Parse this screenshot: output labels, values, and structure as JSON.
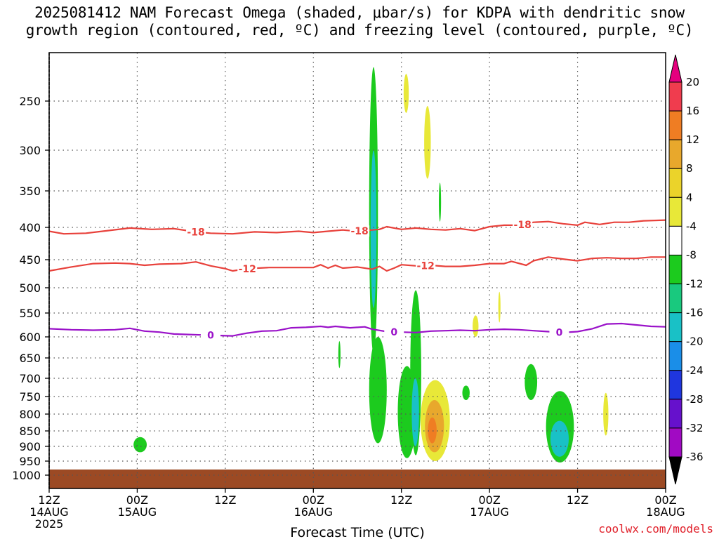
{
  "title_line1": "2025081412 NAM Forecast Omega (shaded, μbar/s) for KDPA with dendritic snow",
  "title_line2": "growth region (contoured, red, ºC) and freezing level (contoured, purple, ºC)",
  "credit": "coolwx.com/models",
  "colors": {
    "ground": "#9c4a24",
    "temp_contour": "#e8413b",
    "freezing_contour": "#9a12c9"
  },
  "chart_data": {
    "type": "heatmap",
    "xlabel": "Forecast Time (UTC)",
    "ylabel": "",
    "x_unit": "hours since 2025-08-14 12Z",
    "xlim": [
      0,
      84
    ],
    "x_ticks": [
      {
        "x": 0,
        "line1": "12Z",
        "line2": "14AUG",
        "line3": "2025"
      },
      {
        "x": 12,
        "line1": "00Z",
        "line2": "15AUG",
        "line3": ""
      },
      {
        "x": 24,
        "line1": "12Z",
        "line2": "",
        "line3": ""
      },
      {
        "x": 36,
        "line1": "00Z",
        "line2": "16AUG",
        "line3": ""
      },
      {
        "x": 48,
        "line1": "12Z",
        "line2": "",
        "line3": ""
      },
      {
        "x": 60,
        "line1": "00Z",
        "line2": "17AUG",
        "line3": ""
      },
      {
        "x": 72,
        "line1": "12Z",
        "line2": "",
        "line3": ""
      },
      {
        "x": 84,
        "line1": "00Z",
        "line2": "18AUG",
        "line3": ""
      }
    ],
    "y_unit": "hPa",
    "ylim": [
      200,
      1030
    ],
    "y_ticks": [
      250,
      300,
      350,
      400,
      450,
      500,
      550,
      600,
      650,
      700,
      750,
      800,
      850,
      900,
      950,
      1000
    ],
    "ground_top_pressure": 980,
    "colorbar": {
      "labels": [
        "20",
        "16",
        "12",
        "8",
        "4",
        "-4",
        "-8",
        "-12",
        "-16",
        "-20",
        "-24",
        "-28",
        "-32",
        "-36"
      ],
      "colors": [
        "#f03c4e",
        "#ef7d23",
        "#e8a82c",
        "#ebd32a",
        "#e8e838",
        "#ffffff",
        "#1ccb1e",
        "#19c97e",
        "#19c1c6",
        "#1a8ee8",
        "#1f36df",
        "#6611cc",
        "#a10ac3",
        "#a8a8a8"
      ],
      "top_color": "#e5007e",
      "bottom_color": "#000000"
    },
    "contours": [
      {
        "label": "-18",
        "color": "#e8413b",
        "label_x": 20,
        "label_x2": 42.3,
        "label_x3": 64.5,
        "points": [
          [
            0,
            406
          ],
          [
            2,
            410
          ],
          [
            5,
            409
          ],
          [
            8,
            405
          ],
          [
            11,
            401
          ],
          [
            14,
            403
          ],
          [
            17,
            402
          ],
          [
            20,
            407
          ],
          [
            22,
            409
          ],
          [
            25,
            410
          ],
          [
            28,
            407
          ],
          [
            31,
            408
          ],
          [
            34,
            406
          ],
          [
            36,
            408
          ],
          [
            38,
            406
          ],
          [
            40,
            404
          ],
          [
            42,
            406
          ],
          [
            44,
            404
          ],
          [
            45,
            403
          ],
          [
            46,
            399
          ],
          [
            48,
            403
          ],
          [
            50,
            401
          ],
          [
            52,
            403
          ],
          [
            54,
            404
          ],
          [
            56,
            402
          ],
          [
            58,
            405
          ],
          [
            60,
            399
          ],
          [
            62,
            397
          ],
          [
            64,
            397
          ],
          [
            66,
            393
          ],
          [
            68,
            392
          ],
          [
            70,
            395
          ],
          [
            72,
            397
          ],
          [
            73,
            393
          ],
          [
            75,
            396
          ],
          [
            77,
            393
          ],
          [
            79,
            393
          ],
          [
            81,
            391
          ],
          [
            84,
            390
          ]
        ]
      },
      {
        "label": "-12",
        "color": "#e8413b",
        "label_x": 27,
        "label_x2": 51.3,
        "points": [
          [
            0,
            470
          ],
          [
            3,
            463
          ],
          [
            6,
            457
          ],
          [
            9,
            456
          ],
          [
            11,
            457
          ],
          [
            13,
            460
          ],
          [
            15,
            458
          ],
          [
            18,
            457
          ],
          [
            20,
            454
          ],
          [
            22,
            461
          ],
          [
            24,
            466
          ],
          [
            25,
            470
          ],
          [
            27,
            466
          ],
          [
            30,
            464
          ],
          [
            33,
            464
          ],
          [
            36,
            464
          ],
          [
            37,
            459
          ],
          [
            38,
            465
          ],
          [
            39,
            460
          ],
          [
            40,
            465
          ],
          [
            42,
            463
          ],
          [
            44,
            467
          ],
          [
            45,
            462
          ],
          [
            46,
            470
          ],
          [
            47,
            465
          ],
          [
            48,
            459
          ],
          [
            50,
            461
          ],
          [
            52,
            460
          ],
          [
            54,
            462
          ],
          [
            56,
            462
          ],
          [
            58,
            460
          ],
          [
            60,
            457
          ],
          [
            62,
            457
          ],
          [
            63,
            453
          ],
          [
            65,
            460
          ],
          [
            66,
            452
          ],
          [
            68,
            446
          ],
          [
            70,
            449
          ],
          [
            72,
            452
          ],
          [
            74,
            448
          ],
          [
            76,
            447
          ],
          [
            78,
            448
          ],
          [
            80,
            448
          ],
          [
            82,
            446
          ],
          [
            84,
            446
          ]
        ]
      },
      {
        "label": "0",
        "color": "#9a12c9",
        "label_x": 22,
        "label_x2": 47,
        "label_x3": 69.5,
        "points": [
          [
            0,
            583
          ],
          [
            3,
            585
          ],
          [
            6,
            586
          ],
          [
            9,
            585
          ],
          [
            11,
            582
          ],
          [
            13,
            588
          ],
          [
            15,
            590
          ],
          [
            17,
            594
          ],
          [
            19,
            595
          ],
          [
            21,
            596
          ],
          [
            23,
            597
          ],
          [
            25,
            598
          ],
          [
            27,
            592
          ],
          [
            29,
            588
          ],
          [
            31,
            587
          ],
          [
            33,
            581
          ],
          [
            35,
            580
          ],
          [
            37,
            578
          ],
          [
            38,
            580
          ],
          [
            39,
            578
          ],
          [
            41,
            581
          ],
          [
            43,
            579
          ],
          [
            44,
            584
          ],
          [
            46,
            589
          ],
          [
            48,
            590
          ],
          [
            50,
            591
          ],
          [
            52,
            588
          ],
          [
            54,
            587
          ],
          [
            56,
            586
          ],
          [
            58,
            587
          ],
          [
            60,
            585
          ],
          [
            62,
            584
          ],
          [
            64,
            585
          ],
          [
            66,
            587
          ],
          [
            68,
            589
          ],
          [
            70,
            591
          ],
          [
            72,
            589
          ],
          [
            74,
            583
          ],
          [
            76,
            573
          ],
          [
            78,
            572
          ],
          [
            80,
            575
          ],
          [
            82,
            578
          ],
          [
            84,
            579
          ]
        ]
      }
    ],
    "omega_regions": [
      {
        "level": "-8 to -12",
        "color": "#1ccb1e",
        "x_range": [
          43.6,
          44.8
        ],
        "p_range": [
          215,
          640
        ]
      },
      {
        "level": "-12 to -16",
        "color": "#19c1c6",
        "x_range": [
          43.8,
          44.6
        ],
        "p_range": [
          300,
          540
        ]
      },
      {
        "level": "-8 to -12",
        "color": "#1ccb1e",
        "x_range": [
          43.6,
          46.0
        ],
        "p_range": [
          600,
          890
        ]
      },
      {
        "level": "-8 to -12",
        "color": "#1ccb1e",
        "x_range": [
          47.5,
          50.0
        ],
        "p_range": [
          670,
          940
        ]
      },
      {
        "level": "-8 to -12",
        "color": "#1ccb1e",
        "x_range": [
          49.2,
          50.7
        ],
        "p_range": [
          505,
          930
        ]
      },
      {
        "level": "-12 to -16",
        "color": "#19c1c6",
        "x_range": [
          49.4,
          50.4
        ],
        "p_range": [
          700,
          900
        ]
      },
      {
        "level": "4 to 8",
        "color": "#e8e838",
        "x_range": [
          50.6,
          54.6
        ],
        "p_range": [
          705,
          950
        ]
      },
      {
        "level": "8 to 12",
        "color": "#e8a82c",
        "x_range": [
          51.2,
          53.8
        ],
        "p_range": [
          760,
          920
        ]
      },
      {
        "level": "12 to 16",
        "color": "#ef7d23",
        "x_range": [
          51.6,
          52.8
        ],
        "p_range": [
          810,
          890
        ]
      },
      {
        "level": "4 to 8",
        "color": "#e8e838",
        "x_range": [
          48.3,
          49.0
        ],
        "p_range": [
          222,
          262
        ]
      },
      {
        "level": "4 to 8",
        "color": "#e8e838",
        "x_range": [
          51.1,
          52.0
        ],
        "p_range": [
          255,
          335
        ]
      },
      {
        "level": "-8 to -12",
        "color": "#1ccb1e",
        "x_range": [
          53.1,
          53.4
        ],
        "p_range": [
          340,
          392
        ]
      },
      {
        "level": "4 to 8",
        "color": "#e8e838",
        "x_range": [
          57.7,
          58.5
        ],
        "p_range": [
          555,
          600
        ]
      },
      {
        "level": "4 to 8",
        "color": "#e8e838",
        "x_range": [
          61.2,
          61.5
        ],
        "p_range": [
          508,
          570
        ]
      },
      {
        "level": "-8 to -12",
        "color": "#1ccb1e",
        "x_range": [
          56.3,
          57.3
        ],
        "p_range": [
          720,
          760
        ]
      },
      {
        "level": "-8 to -12",
        "color": "#1ccb1e",
        "x_range": [
          64.8,
          66.5
        ],
        "p_range": [
          665,
          760
        ]
      },
      {
        "level": "-8 to -12",
        "color": "#1ccb1e",
        "x_range": [
          67.7,
          71.5
        ],
        "p_range": [
          735,
          955
        ]
      },
      {
        "level": "-12 to -16",
        "color": "#19c1c6",
        "x_range": [
          68.3,
          70.8
        ],
        "p_range": [
          820,
          935
        ]
      },
      {
        "level": "4 to 8",
        "color": "#e8e838",
        "x_range": [
          75.5,
          76.2
        ],
        "p_range": [
          740,
          865
        ]
      },
      {
        "level": "-8 to -12",
        "color": "#1ccb1e",
        "x_range": [
          11.5,
          13.3
        ],
        "p_range": [
          870,
          920
        ]
      },
      {
        "level": "-8 to -12",
        "color": "#1ccb1e",
        "x_range": [
          39.4,
          39.7
        ],
        "p_range": [
          610,
          675
        ]
      }
    ]
  }
}
